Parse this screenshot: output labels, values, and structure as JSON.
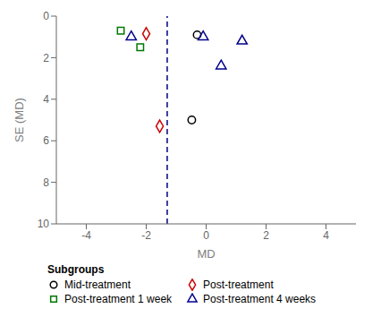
{
  "chart_data": {
    "type": "scatter",
    "xlabel": "MD",
    "ylabel": "SE (MD)",
    "xlim": [
      -5,
      5
    ],
    "ylim": [
      10,
      0
    ],
    "xticks": [
      -4,
      -2,
      0,
      2,
      4
    ],
    "yticks": [
      0,
      2,
      4,
      6,
      8,
      10
    ],
    "grid": false,
    "legend": "bottom",
    "legend_title": "Subgroups",
    "reference_lines": [
      {
        "x": -1.3,
        "color": "navy",
        "line_style": "dashed"
      }
    ],
    "series": [
      {
        "name": "Mid-treatment",
        "color": "black",
        "marker": "circle",
        "x": [
          -0.48,
          -0.3
        ],
        "values": [
          5.0,
          0.9
        ]
      },
      {
        "name": "Post-treatment",
        "color": "#cc0000",
        "marker": "diamond",
        "x": [
          -1.55,
          -2.0
        ],
        "values": [
          5.3,
          0.85
        ]
      },
      {
        "name": "Post-treatment 1 week",
        "color": "#007700",
        "marker": "square",
        "x": [
          -2.85,
          -2.2
        ],
        "values": [
          0.7,
          1.5
        ]
      },
      {
        "name": "Post-treatment 4 weeks",
        "color": "#00008B",
        "marker": "triangle",
        "x": [
          -2.5,
          -0.1,
          0.5,
          1.2
        ],
        "values": [
          1.0,
          1.0,
          2.4,
          1.2
        ]
      }
    ]
  }
}
